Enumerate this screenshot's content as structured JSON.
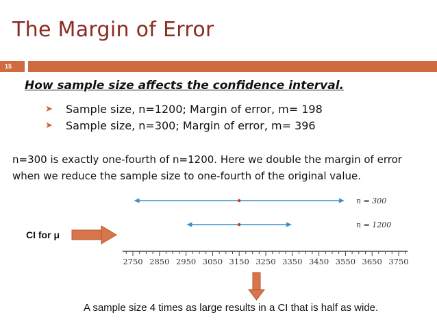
{
  "slide": {
    "title": "The Margin of Error",
    "number": "15",
    "accent_color": "#d06a3f",
    "title_color": "#8b2c22"
  },
  "content": {
    "subtitle": "How sample size affects the confidence interval.",
    "bullets": [
      "Sample size, n=1200; Margin of error, m= 198",
      "Sample size, n=300; Margin of error, m= 396"
    ],
    "paragraph": "n=300 is exactly one-fourth of n=1200.  Here we double the margin of error when we reduce the sample size to one-fourth of the original value.",
    "ci_label": "CI for μ",
    "caption": "A sample size 4 times as large results in a CI that is half as wide."
  },
  "chart_data": {
    "type": "interval",
    "xlim": [
      2700,
      3800
    ],
    "ticks": [
      2750,
      2850,
      2950,
      3050,
      3150,
      3250,
      3350,
      3450,
      3550,
      3650,
      3750
    ],
    "series": [
      {
        "label": "n = 300",
        "center": 3150,
        "low": 2754,
        "high": 3546
      },
      {
        "label": "n = 1200",
        "center": 3150,
        "low": 2952,
        "high": 3348
      }
    ],
    "interval_color": "#3a8fc8",
    "center_color": "#c0392b"
  }
}
